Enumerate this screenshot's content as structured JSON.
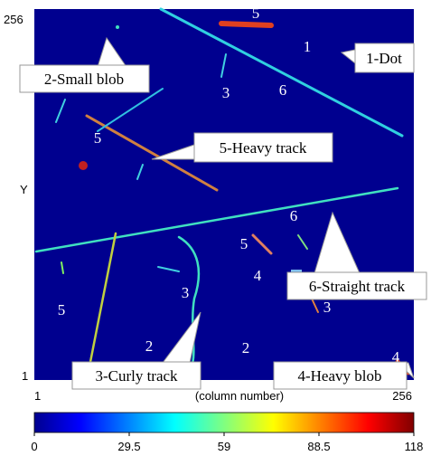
{
  "axes": {
    "y_label": "Y",
    "x_label": "(column number)",
    "y_top": "256",
    "y_bottom": "1",
    "x_left": "1",
    "x_right": "256"
  },
  "colorbar": {
    "lim": [
      0,
      118
    ],
    "ticks": [
      0,
      29.5,
      59,
      88.5,
      118
    ]
  },
  "callouts": [
    "1-Dot",
    "2-Small blob",
    "5-Heavy track",
    "6-Straight track",
    "3-Curly track",
    "4-Heavy blob"
  ],
  "track_labels": [
    "5",
    "1",
    "3",
    "6",
    "5",
    "6",
    "5",
    "4",
    "3",
    "3",
    "5",
    "2",
    "2",
    "4"
  ]
}
